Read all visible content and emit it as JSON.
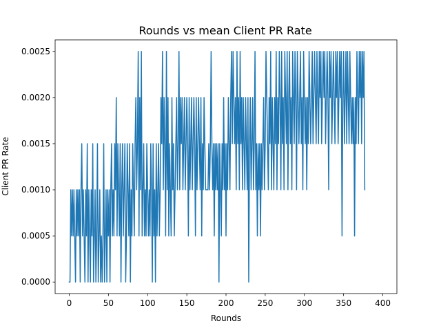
{
  "chart_data": {
    "type": "line",
    "title": "Rounds vs mean Client PR Rate",
    "xlabel": "Rounds",
    "ylabel": "Client PR Rate",
    "xlim": [
      -18,
      418
    ],
    "ylim": [
      -0.000125,
      0.002625
    ],
    "x_ticks": [
      0,
      50,
      100,
      150,
      200,
      250,
      300,
      350,
      400
    ],
    "x_tick_labels": [
      "0",
      "50",
      "100",
      "150",
      "200",
      "250",
      "300",
      "350",
      "400"
    ],
    "y_ticks": [
      0,
      0.0005,
      0.001,
      0.0015,
      0.002,
      0.0025
    ],
    "y_tick_labels": [
      "0.0000",
      "0.0005",
      "0.0010",
      "0.0015",
      "0.0020",
      "0.0025"
    ],
    "grid": false,
    "series_color": "#1f77b4",
    "series": [
      {
        "x_start": 0,
        "x_step": 1,
        "values": [
          0.0,
          0.0,
          0.001,
          0.0005,
          0.001,
          0.0005,
          0.001,
          0.0005,
          0.0,
          0.001,
          0.0005,
          0.001,
          0.0005,
          0.001,
          0.0,
          0.001,
          0.0015,
          0.0005,
          0.001,
          0.0005,
          0.0,
          0.001,
          0.0005,
          0.0015,
          0.0,
          0.001,
          0.0005,
          0.0,
          0.001,
          0.0005,
          0.0015,
          0.0,
          0.0005,
          0.001,
          0.0,
          0.0005,
          0.0015,
          0.0,
          0.0005,
          0.001,
          0.0,
          0.0005,
          0.0,
          0.0005,
          0.0015,
          0.0,
          0.0005,
          0.001,
          0.0,
          0.001,
          0.0005,
          0.001,
          0.0,
          0.001,
          0.0015,
          0.0005,
          0.001,
          0.0005,
          0.0015,
          0.001,
          0.002,
          0.0005,
          0.0015,
          0.001,
          0.0005,
          0.0015,
          0.0,
          0.001,
          0.0015,
          0.0005,
          0.001,
          0.0015,
          0.0,
          0.0005,
          0.0015,
          0.001,
          0.0005,
          0.0015,
          0.0,
          0.001,
          0.0005,
          0.0015,
          0.001,
          0.0005,
          0.0015,
          0.002,
          0.001,
          0.0015,
          0.0025,
          0.0005,
          0.002,
          0.001,
          0.0025,
          0.0005,
          0.001,
          0.0015,
          0.0005,
          0.001,
          0.0005,
          0.0015,
          0.001,
          0.0005,
          0.001,
          0.0005,
          0.0015,
          0.001,
          0.0,
          0.0015,
          0.0005,
          0.001,
          0.0,
          0.0015,
          0.0005,
          0.001,
          0.0015,
          0.0005,
          0.001,
          0.002,
          0.0015,
          0.0025,
          0.001,
          0.002,
          0.0015,
          0.0005,
          0.0025,
          0.001,
          0.002,
          0.0005,
          0.0015,
          0.001,
          0.0005,
          0.002,
          0.001,
          0.0015,
          0.0005,
          0.001,
          0.0015,
          0.002,
          0.001,
          0.0015,
          0.0025,
          0.001,
          0.002,
          0.0015,
          0.002,
          0.001,
          0.0015,
          0.002,
          0.001,
          0.0015,
          0.002,
          0.0015,
          0.0005,
          0.002,
          0.001,
          0.0015,
          0.002,
          0.001,
          0.0015,
          0.002,
          0.0015,
          0.0005,
          0.002,
          0.001,
          0.0015,
          0.002,
          0.0015,
          0.001,
          0.002,
          0.0005,
          0.0015,
          0.001,
          0.002,
          0.0015,
          0.001,
          0.001,
          0.001,
          0.001,
          0.0015,
          0.001,
          0.0015,
          0.0025,
          0.0015,
          0.001,
          0.0015,
          0.0005,
          0.0015,
          0.001,
          0.0015,
          0.001,
          0.0015,
          0.0,
          0.0015,
          0.001,
          0.0005,
          0.0015,
          0.001,
          0.002,
          0.001,
          0.0015,
          0.0005,
          0.0015,
          0.001,
          0.002,
          0.0015,
          0.001,
          0.002,
          0.0025,
          0.0015,
          0.0025,
          0.002,
          0.0015,
          0.002,
          0.001,
          0.0025,
          0.0015,
          0.002,
          0.001,
          0.0025,
          0.0015,
          0.002,
          0.001,
          0.002,
          0.0015,
          0.001,
          0.002,
          0.0015,
          0.001,
          0.002,
          0.0,
          0.0015,
          0.002,
          0.001,
          0.0015,
          0.002,
          0.001,
          0.0015,
          0.0025,
          0.001,
          0.0015,
          0.0005,
          0.0015,
          0.001,
          0.0015,
          0.0005,
          0.0015,
          0.001,
          0.0015,
          0.002,
          0.001,
          0.0015,
          0.0025,
          0.002,
          0.0015,
          0.001,
          0.002,
          0.0015,
          0.0025,
          0.001,
          0.002,
          0.0015,
          0.001,
          0.002,
          0.0015,
          0.0025,
          0.001,
          0.002,
          0.0015,
          0.0025,
          0.002,
          0.001,
          0.0025,
          0.0015,
          0.002,
          0.001,
          0.0025,
          0.002,
          0.0015,
          0.0025,
          0.001,
          0.002,
          0.0025,
          0.0015,
          0.002,
          0.001,
          0.0025,
          0.002,
          0.0015,
          0.0025,
          0.002,
          0.001,
          0.0025,
          0.002,
          0.0015,
          0.002,
          0.0025,
          0.0015,
          0.002,
          0.001,
          0.0025,
          0.002,
          0.0015,
          0.002,
          0.001,
          0.002,
          0.0015,
          0.0025,
          0.002,
          0.0015,
          0.002,
          0.0025,
          0.0015,
          0.002,
          0.0025,
          0.002,
          0.0015,
          0.0025,
          0.002,
          0.0015,
          0.0025,
          0.002,
          0.0025,
          0.0015,
          0.002,
          0.0025,
          0.002,
          0.0025,
          0.0015,
          0.002,
          0.0025,
          0.002,
          0.001,
          0.0025,
          0.002,
          0.0025,
          0.0015,
          0.002,
          0.0025,
          0.002,
          0.0015,
          0.0025,
          0.002,
          0.0025,
          0.0015,
          0.002,
          0.0025,
          0.002,
          0.0025,
          0.0005,
          0.002,
          0.0025,
          0.0015,
          0.002,
          0.0025,
          0.0015,
          0.0025,
          0.002,
          0.0015,
          0.0025,
          0.002,
          0.0015,
          0.002,
          0.0015,
          0.002,
          0.0005,
          0.002,
          0.0015,
          0.0025,
          0.002,
          0.0015,
          0.0025,
          0.002,
          0.0025,
          0.0015,
          0.0025,
          0.002,
          0.0025,
          0.001
        ]
      }
    ]
  }
}
